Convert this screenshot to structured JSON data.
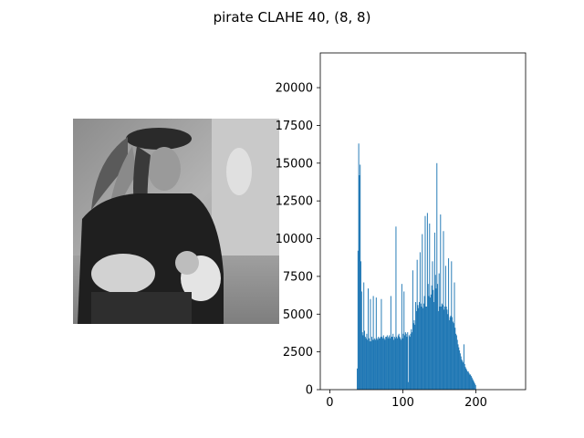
{
  "figure": {
    "title": "pirate CLAHE 40, (8, 8)"
  },
  "image_panel": {
    "description_icon": "grayscale-photo-icon",
    "colors": {
      "dark": "#1e1e1e",
      "mid": "#7a7a7a",
      "light": "#c8c8c8"
    }
  },
  "chart_data": {
    "type": "bar",
    "title": "",
    "xlabel": "",
    "ylabel": "",
    "xlim": [
      -13,
      268
    ],
    "ylim": [
      0,
      22300
    ],
    "xticks": [
      0,
      100,
      200
    ],
    "yticks": [
      0,
      2500,
      5000,
      7500,
      10000,
      12500,
      15000,
      17500,
      20000
    ],
    "xtick_labels": [
      "0",
      "100",
      "200"
    ],
    "ytick_labels": [
      "0",
      "2500",
      "5000",
      "7500",
      "10000",
      "12500",
      "15000",
      "17500",
      "20000"
    ],
    "grid": false,
    "bar_color": "#1f77b4",
    "bins": {
      "start": 37,
      "values": [
        1400,
        9200,
        16300,
        14200,
        14900,
        8500,
        6500,
        3800,
        3600,
        7100,
        3900,
        3500,
        3400,
        3700,
        3300,
        6700,
        3400,
        3200,
        6000,
        3200,
        3500,
        3300,
        6200,
        3300,
        3400,
        3300,
        6100,
        3400,
        3300,
        3500,
        3400,
        3400,
        3500,
        6000,
        3500,
        3400,
        3600,
        3400,
        3300,
        3500,
        3500,
        3600,
        3400,
        3500,
        3600,
        3400,
        6200,
        3500,
        3500,
        3700,
        3300,
        3500,
        3400,
        10800,
        3500,
        3400,
        3600,
        3700,
        3500,
        3400,
        3300,
        7000,
        3400,
        3700,
        6500,
        3600,
        3800,
        3700,
        3500,
        3800,
        500,
        3600,
        3500,
        3700,
        4000,
        3800,
        7900,
        4400,
        4600,
        4300,
        5800,
        5200,
        8600,
        5600,
        5400,
        5800,
        9100,
        5700,
        5500,
        10300,
        5400,
        5700,
        6200,
        11500,
        5500,
        5500,
        11700,
        7000,
        6200,
        11000,
        6100,
        6300,
        6900,
        8500,
        6600,
        5800,
        10400,
        7600,
        6700,
        15000,
        7000,
        5200,
        7700,
        5500,
        11600,
        5500,
        5700,
        5600,
        10500,
        5300,
        5500,
        8200,
        5500,
        5300,
        5000,
        8700,
        4600,
        4800,
        4900,
        8500,
        4800,
        4500,
        4400,
        7100,
        4100,
        3700,
        3600,
        3300,
        3000,
        2800,
        2600,
        2400,
        2200,
        2000,
        1900,
        1800,
        3000,
        1700,
        1500,
        1400,
        1300,
        1200,
        1200,
        1100,
        1000,
        1000,
        900,
        800,
        700,
        600,
        500,
        400,
        300
      ]
    }
  }
}
